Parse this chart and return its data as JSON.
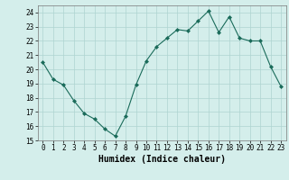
{
  "x": [
    0,
    1,
    2,
    3,
    4,
    5,
    6,
    7,
    8,
    9,
    10,
    11,
    12,
    13,
    14,
    15,
    16,
    17,
    18,
    19,
    20,
    21,
    22,
    23
  ],
  "y": [
    20.5,
    19.3,
    18.9,
    17.8,
    16.9,
    16.5,
    15.8,
    15.3,
    16.7,
    18.9,
    20.6,
    21.6,
    22.2,
    22.8,
    22.7,
    23.4,
    24.1,
    22.6,
    23.7,
    22.2,
    22.0,
    22.0,
    20.2,
    18.8
  ],
  "xlabel": "Humidex (Indice chaleur)",
  "ylim": [
    15,
    24.5
  ],
  "xlim": [
    -0.5,
    23.5
  ],
  "yticks": [
    15,
    16,
    17,
    18,
    19,
    20,
    21,
    22,
    23,
    24
  ],
  "xticks": [
    0,
    1,
    2,
    3,
    4,
    5,
    6,
    7,
    8,
    9,
    10,
    11,
    12,
    13,
    14,
    15,
    16,
    17,
    18,
    19,
    20,
    21,
    22,
    23
  ],
  "line_color": "#1a6b5a",
  "marker_color": "#1a6b5a",
  "bg_color": "#d4eeeb",
  "grid_color": "#aed4d0",
  "text_color": "#000000",
  "tick_fontsize": 5.5,
  "xlabel_fontsize": 7.0
}
